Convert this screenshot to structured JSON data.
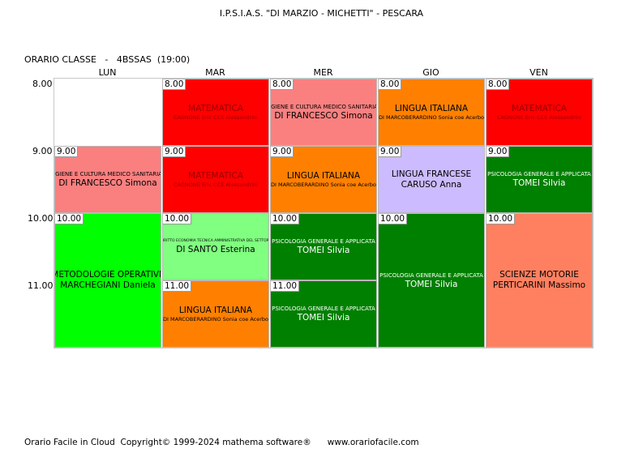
{
  "header": {
    "school": "I.P.S.I.A.S. \"DI MARZIO - MICHETTI\" - PESCARA",
    "class_line": "ORARIO CLASSE   -   4BSSAS  (19:00)"
  },
  "days": [
    "LUN",
    "MAR",
    "MER",
    "GIO",
    "VEN"
  ],
  "times": [
    "8.00",
    "9.00",
    "10.00",
    "11.00"
  ],
  "lessons": {
    "mar_8": {
      "start": "8.00",
      "subject": "MATEMATICA",
      "teacher": "CAGNONE Eric CCE Alessandrini",
      "color": "#ff0000"
    },
    "mer_8": {
      "start": "8.00",
      "subject": "IGIENE E CULTURA MEDICO SANITARIA",
      "teacher": "DI FRANCESCO Simona",
      "color": "#fa8080"
    },
    "gio_8": {
      "start": "8.00",
      "subject": "LINGUA ITALIANA",
      "teacher": "DI MARCOBERARDINO Sonia coe Acerbo",
      "color": "#ff8000"
    },
    "ven_8": {
      "start": "8.00",
      "subject": "MATEMATICA",
      "teacher": "CAGNONE Eric CCE Alessandrini",
      "color": "#ff0000"
    },
    "lun_9": {
      "start": "9.00",
      "subject": "IGIENE E CULTURA MEDICO SANITARIA",
      "teacher": "DI FRANCESCO Simona",
      "color": "#fa8080"
    },
    "mar_9": {
      "start": "9.00",
      "subject": "MATEMATICA",
      "teacher": "CAGNONE Eric CCE Alessandrini",
      "color": "#ff0000"
    },
    "mer_9": {
      "start": "9.00",
      "subject": "LINGUA ITALIANA",
      "teacher": "DI MARCOBERARDINO Sonia coe Acerbo",
      "color": "#ff8000"
    },
    "gio_9": {
      "start": "9.00",
      "subject": "LINGUA FRANCESE",
      "teacher": "CARUSO Anna",
      "color": "#ccbbff"
    },
    "ven_9": {
      "start": "9.00",
      "subject": "PSICOLOGIA GENERALE E APPLICATA",
      "teacher": "TOMEI Silvia",
      "color": "#008000"
    },
    "lun_10": {
      "start": "10.00",
      "subject": "METODOLOGIE OPERATIVE",
      "teacher": "MARCHEGIANI Daniela",
      "color": "#00ff00"
    },
    "mar_10": {
      "start": "10.00",
      "subject": "DIRITTO ECONOMIA TECNICA AMMINISTRATIVA DEL SETTORE",
      "teacher": "DI SANTO Esterina",
      "color": "#80ff80"
    },
    "mer_10": {
      "start": "10.00",
      "subject": "PSICOLOGIA GENERALE E APPLICATA",
      "teacher": "TOMEI Silvia",
      "color": "#008000"
    },
    "gio_10": {
      "start": "10.00",
      "subject": "PSICOLOGIA GENERALE E APPLICATA",
      "teacher": "TOMEI Silvia",
      "color": "#008000"
    },
    "ven_10": {
      "start": "10.00",
      "subject": "SCIENZE MOTORIE",
      "teacher": "PERTICARINI Massimo",
      "color": "#ff8060"
    },
    "mar_11": {
      "start": "11.00",
      "subject": "LINGUA ITALIANA",
      "teacher": "DI MARCOBERARDINO Sonia coe Acerbo",
      "color": "#ff8000"
    },
    "mer_11": {
      "start": "11.00",
      "subject": "PSICOLOGIA GENERALE E APPLICATA",
      "teacher": "TOMEI Silvia",
      "color": "#008000"
    }
  },
  "footer": "Orario Facile in Cloud  Copyright© 1999-2024 mathema software®      www.orariofacile.com"
}
